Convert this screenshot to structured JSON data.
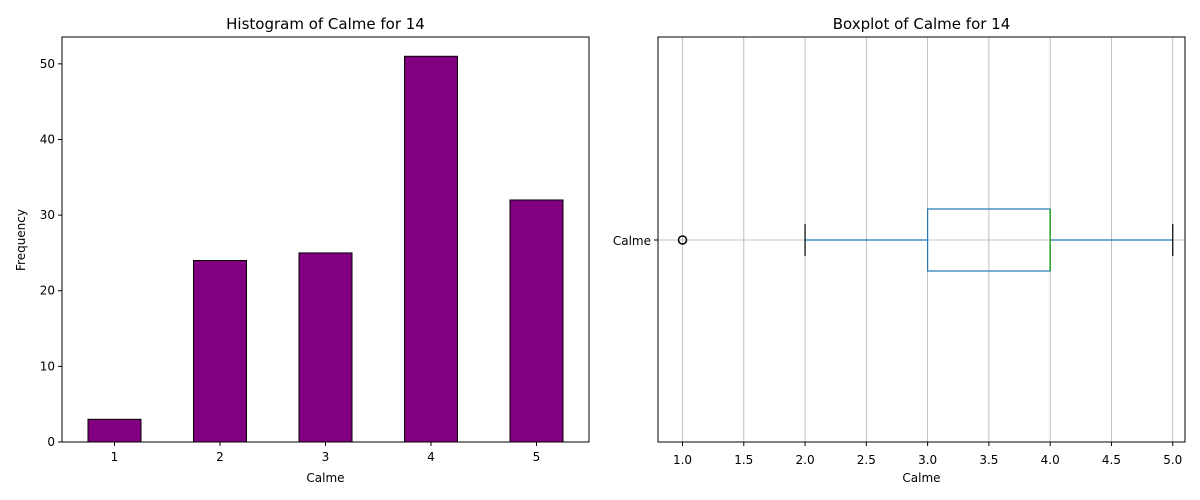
{
  "chart_data": [
    {
      "type": "bar",
      "title": "Histogram of Calme for 14",
      "xlabel": "Calme",
      "ylabel": "Frequency",
      "categories": [
        "1",
        "2",
        "3",
        "4",
        "5"
      ],
      "values": [
        3,
        24,
        25,
        51,
        32
      ],
      "ylim": [
        0,
        53.55
      ],
      "yticks": [
        0,
        10,
        20,
        30,
        40,
        50
      ],
      "bar_color": "#800080",
      "edge_color": "#000000",
      "grid": false
    },
    {
      "type": "boxplot",
      "title": "Boxplot of Calme for 14",
      "xlabel": "Calme",
      "ylabel": "",
      "category": "Calme",
      "orientation": "horizontal",
      "xlim": [
        0.8,
        5.1
      ],
      "xticks": [
        1.0,
        1.5,
        2.0,
        2.5,
        3.0,
        3.5,
        4.0,
        4.5,
        5.0
      ],
      "whisker_low": 2.0,
      "q1": 3.0,
      "median": 4.0,
      "q3": 4.0,
      "whisker_high": 5.0,
      "outliers": [
        1.0
      ],
      "box_color": "#1f77b4",
      "median_color": "#2ca02c",
      "grid": true
    }
  ]
}
